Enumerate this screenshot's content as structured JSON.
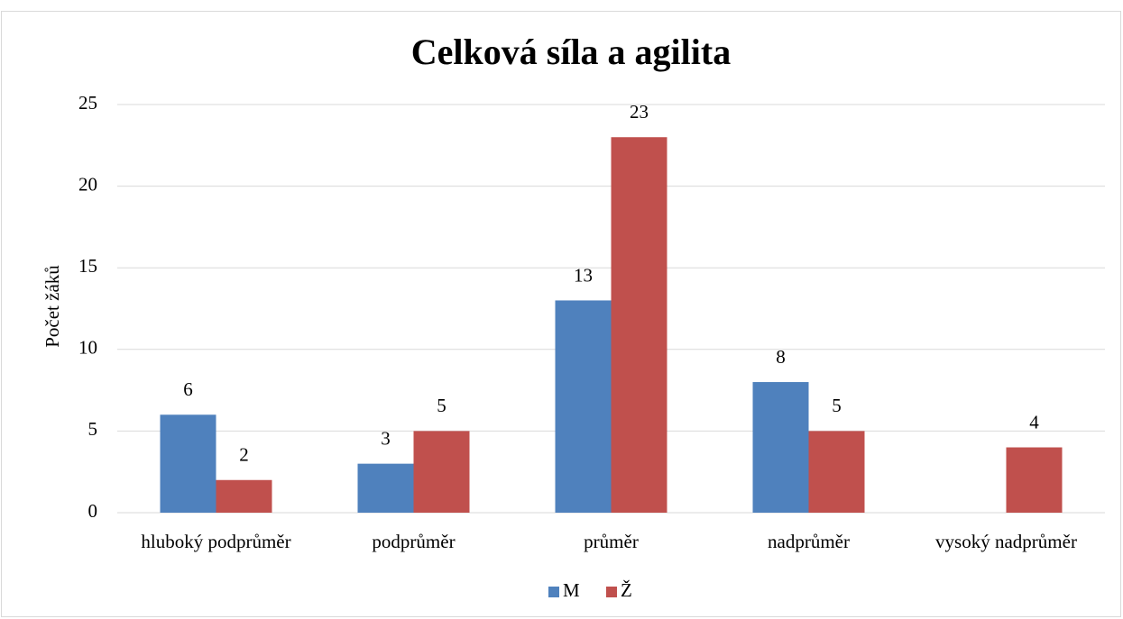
{
  "chart_data": {
    "type": "bar",
    "title": "Celková síla a agilita",
    "y_label": "Počet žáků",
    "categories": [
      "hluboký podprůměr",
      "podprůměr",
      "průměr",
      "nadprůměr",
      "vysoký nadprůměr"
    ],
    "series": [
      {
        "name": "M",
        "color": "#4f81bd",
        "values": [
          6,
          3,
          13,
          8,
          null
        ]
      },
      {
        "name": "Ž",
        "color": "#c0504d",
        "values": [
          2,
          5,
          23,
          5,
          4
        ]
      }
    ],
    "ylim": [
      0,
      25
    ],
    "yticks": [
      0,
      5,
      10,
      15,
      20,
      25
    ],
    "grid": true,
    "legend": "bottom"
  }
}
